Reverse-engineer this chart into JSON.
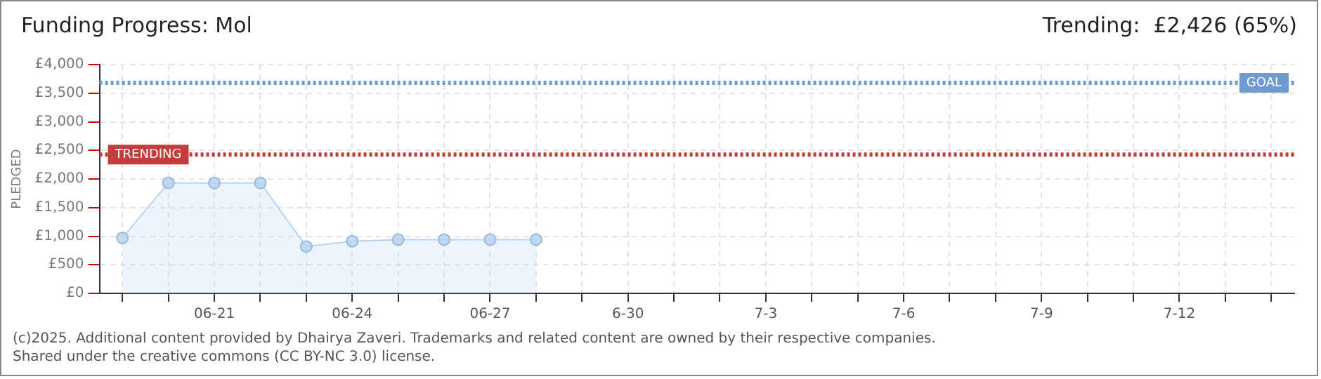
{
  "chart_data": {
    "type": "area",
    "title": "Funding Progress: Mol",
    "subtitle": "Trending:  £2,426 (65%)",
    "ylabel": "PLEDGED",
    "categories": [
      null,
      null,
      "06-21",
      null,
      null,
      "06-24",
      null,
      null,
      "06-27",
      null,
      null,
      "6-30",
      null,
      null,
      "7-3",
      null,
      null,
      "7-6",
      null,
      null,
      "7-9",
      null,
      null,
      "7-12",
      null,
      null
    ],
    "series": [
      {
        "color": "#b8d4f0",
        "values": [
          970,
          1930,
          1930,
          1930,
          820,
          910,
          940,
          940,
          940,
          940,
          null,
          null,
          null,
          null,
          null,
          null,
          null,
          null,
          null,
          null,
          null,
          null,
          null,
          null,
          null,
          null
        ]
      }
    ],
    "ylim": [
      0,
      4000
    ],
    "yticks": [
      {
        "value": 0,
        "label": "£0"
      },
      {
        "value": 500,
        "label": "£500"
      },
      {
        "value": 1000,
        "label": "£1,000"
      },
      {
        "value": 1500,
        "label": "£1,500"
      },
      {
        "value": 2000,
        "label": "£2,000"
      },
      {
        "value": 2500,
        "label": "£2,500"
      },
      {
        "value": 3000,
        "label": "£3,000"
      },
      {
        "value": 3500,
        "label": "£3,500"
      },
      {
        "value": 4000,
        "label": "£4,000"
      }
    ],
    "ref_lines": [
      {
        "axis": "y",
        "value": 3680,
        "label": "GOAL",
        "color": "#6f9bd1",
        "line_style": "dotted"
      },
      {
        "axis": "y",
        "value": 2426,
        "label": "TRENDING",
        "color": "#c43c3c",
        "line_style": "dotted"
      }
    ],
    "grid": true,
    "marker": "circle",
    "annotations": [
      "(c)2025. Additional content provided by Dhairya Zaveri. Trademarks and related content are owned by their respective companies.",
      "Shared under the creative commons (CC BY-NC 3.0) license."
    ]
  }
}
